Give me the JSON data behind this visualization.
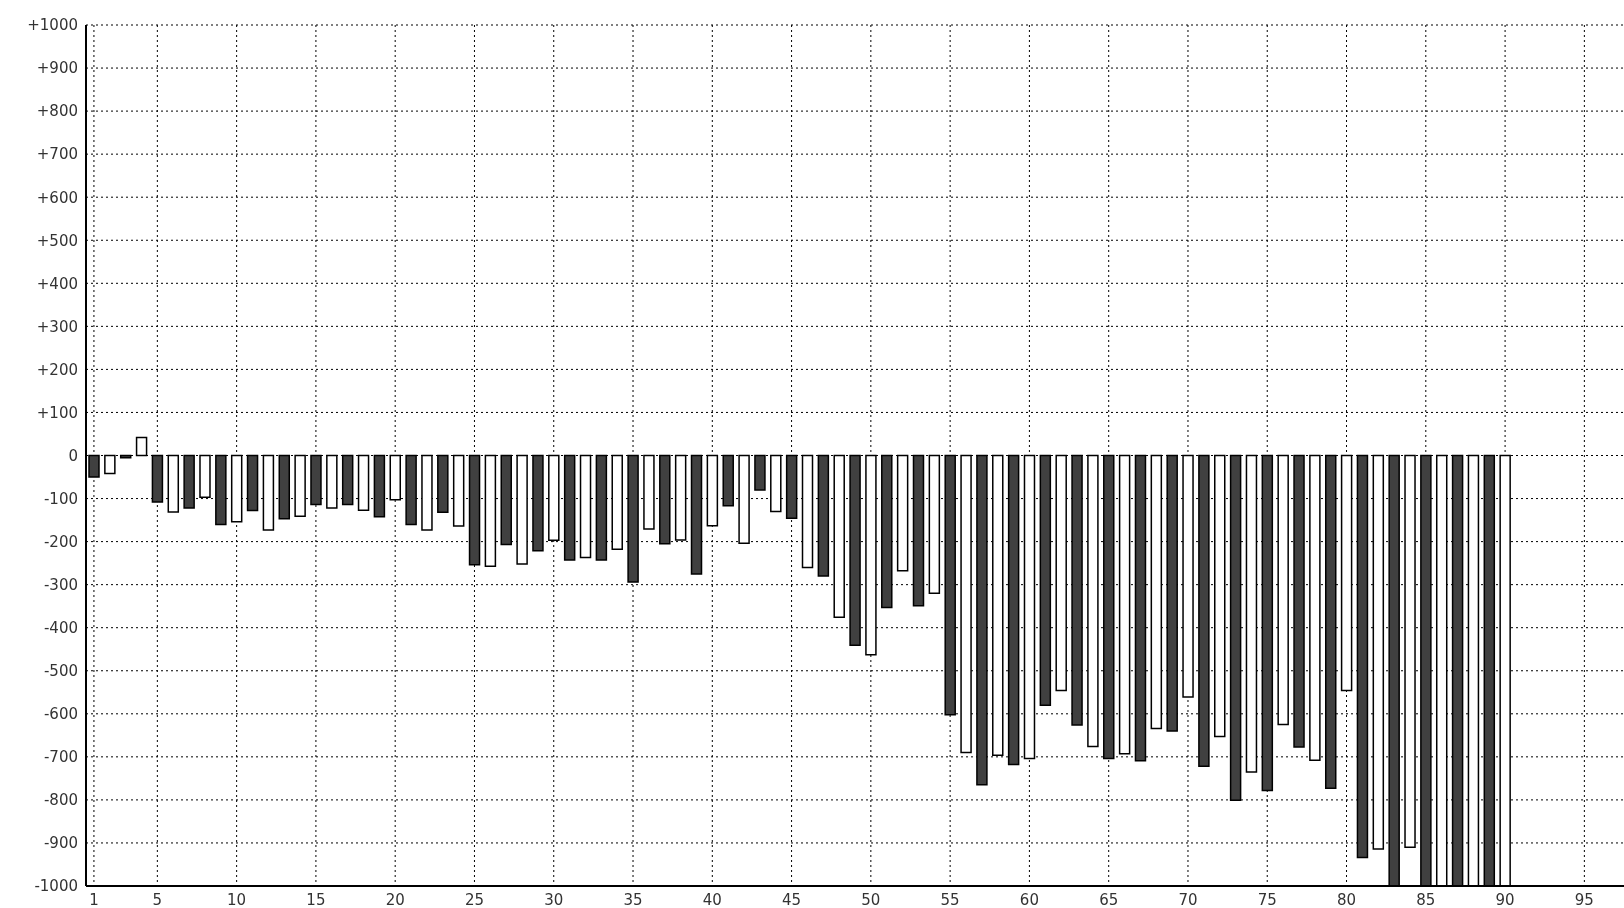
{
  "chart_data": {
    "type": "bar",
    "x": [
      1,
      2,
      3,
      4,
      5,
      6,
      7,
      8,
      9,
      10,
      11,
      12,
      13,
      14,
      15,
      16,
      17,
      18,
      19,
      20,
      21,
      22,
      23,
      24,
      25,
      26,
      27,
      28,
      29,
      30,
      31,
      32,
      33,
      34,
      35,
      36,
      37,
      38,
      39,
      40,
      41,
      42,
      43,
      44,
      45,
      46,
      47,
      48,
      49,
      50,
      51,
      52,
      53,
      54,
      55,
      56,
      57,
      58,
      59,
      60,
      61,
      62,
      63,
      64,
      65,
      66,
      67,
      68,
      69,
      70,
      71,
      72,
      73,
      74,
      75,
      76,
      77,
      78,
      79,
      80,
      81,
      82,
      83,
      84,
      85,
      86,
      87,
      88,
      89,
      90
    ],
    "values": [
      -50,
      -42,
      -5,
      42,
      -108,
      -131,
      -122,
      -97,
      -160,
      -154,
      -128,
      -173,
      -147,
      -141,
      -114,
      -122,
      -114,
      -127,
      -142,
      -103,
      -160,
      -173,
      -132,
      -164,
      -254,
      -257,
      -207,
      -252,
      -221,
      -197,
      -243,
      -237,
      -243,
      -218,
      -294,
      -171,
      -205,
      -196,
      -275,
      -163,
      -117,
      -204,
      -80,
      -130,
      -146,
      -260,
      -280,
      -376,
      -441,
      -463,
      -353,
      -268,
      -349,
      -320,
      -602,
      -690,
      -765,
      -696,
      -718,
      -704,
      -580,
      -546,
      -626,
      -676,
      -704,
      -693,
      -709,
      -634,
      -640,
      -561,
      -722,
      -653,
      -801,
      -735,
      -778,
      -625,
      -677,
      -708,
      -773,
      -546,
      -934,
      -914,
      -1000,
      -910,
      -1000,
      -1000,
      -1000,
      -1000,
      -1000,
      -1000
    ],
    "colors": [
      "#404040",
      "#ffffff",
      "#404040",
      "#ffffff",
      "#404040",
      "#ffffff",
      "#404040",
      "#ffffff",
      "#404040",
      "#ffffff",
      "#404040",
      "#ffffff",
      "#404040",
      "#ffffff",
      "#404040",
      "#ffffff",
      "#404040",
      "#ffffff",
      "#404040",
      "#ffffff",
      "#404040",
      "#ffffff",
      "#404040",
      "#ffffff",
      "#404040",
      "#ffffff",
      "#404040",
      "#ffffff",
      "#404040",
      "#ffffff",
      "#404040",
      "#ffffff",
      "#404040",
      "#ffffff",
      "#404040",
      "#ffffff",
      "#404040",
      "#ffffff",
      "#404040",
      "#ffffff",
      "#404040",
      "#ffffff",
      "#404040",
      "#ffffff",
      "#404040",
      "#ffffff",
      "#404040",
      "#ffffff",
      "#404040",
      "#ffffff",
      "#404040",
      "#ffffff",
      "#404040",
      "#ffffff",
      "#404040",
      "#ffffff",
      "#404040",
      "#ffffff",
      "#404040",
      "#ffffff",
      "#404040",
      "#ffffff",
      "#404040",
      "#ffffff",
      "#404040",
      "#ffffff",
      "#404040",
      "#ffffff",
      "#404040",
      "#ffffff",
      "#404040",
      "#ffffff",
      "#404040",
      "#ffffff",
      "#404040",
      "#ffffff",
      "#404040",
      "#ffffff",
      "#404040",
      "#ffffff",
      "#404040",
      "#ffffff",
      "#404040",
      "#ffffff",
      "#404040",
      "#ffffff",
      "#404040",
      "#ffffff",
      "#404040",
      "#ffffff"
    ],
    "xlim": [
      0.5,
      97.5
    ],
    "xticks": [
      1,
      5,
      10,
      15,
      20,
      25,
      30,
      35,
      40,
      45,
      50,
      55,
      60,
      65,
      70,
      75,
      80,
      85,
      90,
      95
    ],
    "ylim": [
      -1000,
      1000
    ],
    "yticks": [
      -1000,
      -900,
      -800,
      -700,
      -600,
      -500,
      -400,
      -300,
      -200,
      -100,
      0,
      {
        "value": 100,
        "label": "+100"
      },
      {
        "value": 200,
        "label": "+200"
      },
      {
        "value": 300,
        "label": "+300"
      },
      {
        "value": 400,
        "label": "+400"
      },
      {
        "value": 500,
        "label": "+500"
      },
      {
        "value": 600,
        "label": "+600"
      },
      {
        "value": 700,
        "label": "+700"
      },
      {
        "value": 800,
        "label": "+800"
      },
      {
        "value": 900,
        "label": "+900"
      },
      {
        "value": 1000,
        "label": "+1000"
      }
    ],
    "grid": true,
    "legend": false
  }
}
